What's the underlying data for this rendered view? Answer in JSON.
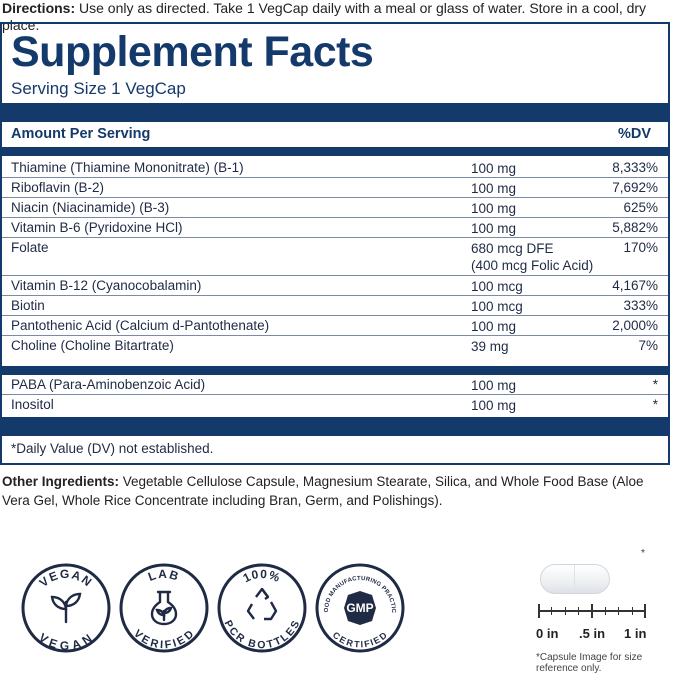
{
  "directions": {
    "label": "Directions:",
    "text": " Use only as directed. Take 1 VegCap daily with a meal or glass of water. Store in a cool, dry place."
  },
  "facts": {
    "title": "Supplement Facts",
    "serving_size": "Serving Size 1 VegCap",
    "amount_header": "Amount Per Serving",
    "dv_header": "%DV",
    "rows": [
      {
        "name": "Thiamine (Thiamine Mononitrate) (B-1)",
        "amount": "100 mg",
        "dv": "8,333%"
      },
      {
        "name": "Riboflavin (B-2)",
        "amount": "100 mg",
        "dv": "7,692%"
      },
      {
        "name": "Niacin (Niacinamide) (B-3)",
        "amount": "100 mg",
        "dv": "625%"
      },
      {
        "name": "Vitamin B-6 (Pyridoxine HCl)",
        "amount": "100 mg",
        "dv": "5,882%"
      },
      {
        "name": "Folate",
        "amount": "680 mcg DFE",
        "amount2": "(400 mcg Folic Acid)",
        "dv": "170%"
      },
      {
        "name": "Vitamin B-12 (Cyanocobalamin)",
        "amount": "100 mcg",
        "dv": "4,167%"
      },
      {
        "name": "Biotin",
        "amount": "100 mcg",
        "dv": "333%"
      },
      {
        "name": "Pantothenic Acid (Calcium d-Pantothenate)",
        "amount": "100 mg",
        "dv": "2,000%"
      },
      {
        "name": "Choline (Choline Bitartrate)",
        "amount": "39 mg",
        "dv": "7%"
      }
    ],
    "rows2": [
      {
        "name": "PABA (Para-Aminobenzoic Acid)",
        "amount": "100 mg",
        "dv": "*"
      },
      {
        "name": "Inositol",
        "amount": "100 mg",
        "dv": "*"
      }
    ],
    "footnote": "*Daily Value (DV) not established."
  },
  "other_ingredients": {
    "label": "Other Ingredients:",
    "text": " Vegetable Cellulose Capsule, Magnesium Stearate, Silica, and Whole Food Base (Aloe Vera Gel, Whole Rice Concentrate including Bran, Germ, and Polishings)."
  },
  "badges": {
    "vegan": {
      "top": "VEGAN",
      "bottom": "VEGAN"
    },
    "lab": {
      "top": "LAB",
      "bottom": "VERIFIED"
    },
    "pcr": {
      "top": "100%",
      "bottom": "PCR BOTTLES"
    },
    "gmp": {
      "top": "GOOD MANUFACTURING PRACTICE",
      "center": "GMP",
      "bottom": "CERTIFIED"
    }
  },
  "capsule": {
    "asterisk": "*",
    "labels": [
      "0 in",
      ".5 in",
      "1 in"
    ],
    "note": "*Capsule Image for size reference only."
  },
  "colors": {
    "navy": "#14396b",
    "text": "#1f2a44"
  },
  "icons": [
    "leaf-sprout-icon",
    "flask-leaf-icon",
    "recycle-icon",
    "gmp-icon"
  ]
}
